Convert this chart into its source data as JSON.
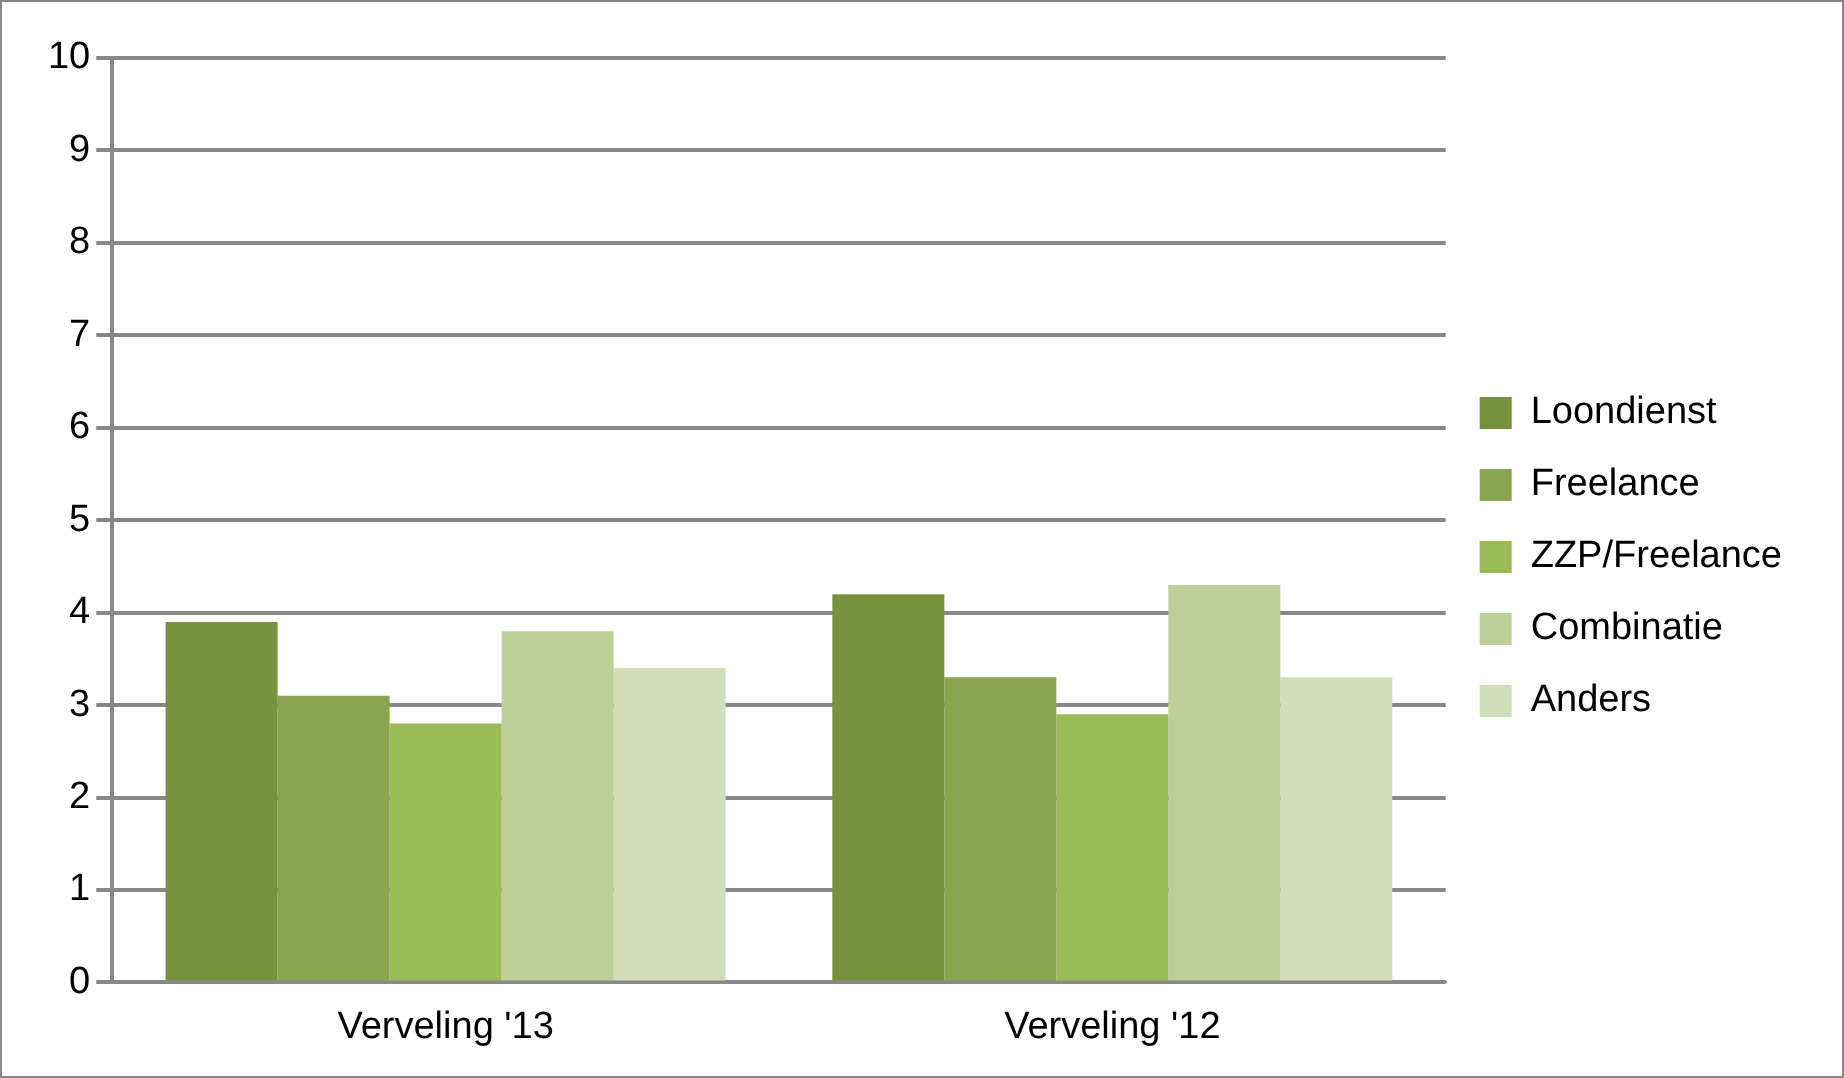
{
  "chart_data": {
    "type": "bar",
    "categories": [
      "Verveling '13",
      "Verveling '12"
    ],
    "series": [
      {
        "name": "Loondienst",
        "color": "#76923c",
        "values": [
          3.9,
          4.2
        ]
      },
      {
        "name": "Freelance",
        "color": "#89a54e",
        "values": [
          3.1,
          3.3
        ]
      },
      {
        "name": "ZZP/Freelance",
        "color": "#9bbb59",
        "values": [
          2.8,
          2.9
        ]
      },
      {
        "name": "Combinatie",
        "color": "#bbcf97",
        "values": [
          3.8,
          4.3
        ]
      },
      {
        "name": "Anders",
        "color": "#d1deba",
        "values": [
          3.4,
          3.3
        ]
      }
    ],
    "ylim": [
      0,
      10
    ],
    "yticks": [
      0,
      1,
      2,
      3,
      4,
      5,
      6,
      7,
      8,
      9,
      10
    ],
    "grid": "y",
    "legend": "right"
  }
}
